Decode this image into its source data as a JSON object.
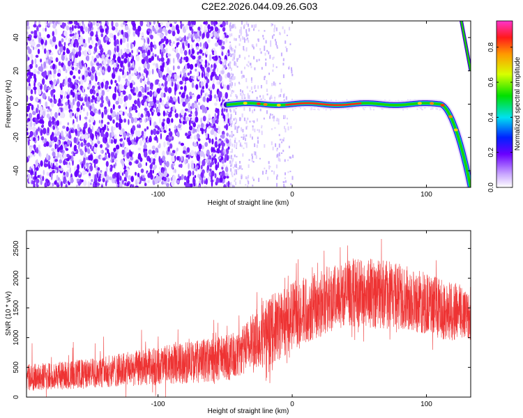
{
  "title": "C2E2.2026.044.09.26.G03",
  "colors": {
    "snr_line": "#ee3333",
    "background": "#ffffff",
    "axis": "#000000"
  },
  "chart_data": [
    {
      "id": "spectrogram",
      "type": "heatmap",
      "xlabel": "Height of straight line (km)",
      "ylabel": "Frequency (Hz)",
      "xlim": [
        -198,
        133
      ],
      "ylim": [
        -50,
        50
      ],
      "x_ticks": [
        -100,
        0,
        100
      ],
      "y_ticks": [
        -40,
        -20,
        0,
        20,
        40
      ],
      "colorbar": {
        "label": "Normalized spectral amplitude",
        "range": [
          0,
          0.95
        ],
        "ticks": [
          0.0,
          0.2,
          0.4,
          0.6,
          0.8
        ]
      },
      "noise_region": {
        "x_start": -198,
        "x_end": -47
      },
      "sparse_region": {
        "x_start": -47,
        "x_end": 0
      },
      "signal_track": {
        "x_start": -49,
        "x_end": 133,
        "flat_frequency": 0,
        "knee_x": 110,
        "end_frequency": -50,
        "peak_amplitude": 0.95
      },
      "aliased_track": {
        "x_start": 126,
        "x_end": 133,
        "freq_start": 50,
        "freq_end": 20
      }
    },
    {
      "id": "snr",
      "type": "line",
      "xlabel": "Height of straight line (km)",
      "ylabel": "SNR (10 * v/v)",
      "xlim": [
        -198,
        133
      ],
      "ylim": [
        0,
        2800
      ],
      "x_ticks": [
        -100,
        0,
        100
      ],
      "y_ticks": [
        0,
        500,
        1000,
        1500,
        2000,
        2500
      ],
      "envelope": {
        "x": [
          -198,
          -150,
          -100,
          -60,
          -40,
          -30,
          -20,
          -10,
          0,
          20,
          40,
          60,
          80,
          100,
          115,
          133
        ],
        "lower": [
          100,
          150,
          200,
          250,
          300,
          450,
          500,
          600,
          800,
          1000,
          1200,
          1150,
          1150,
          1050,
          950,
          950
        ],
        "upper": [
          550,
          650,
          850,
          1000,
          1100,
          1400,
          1650,
          1800,
          1950,
          2150,
          2300,
          2350,
          2250,
          2100,
          1950,
          1900
        ]
      }
    }
  ]
}
